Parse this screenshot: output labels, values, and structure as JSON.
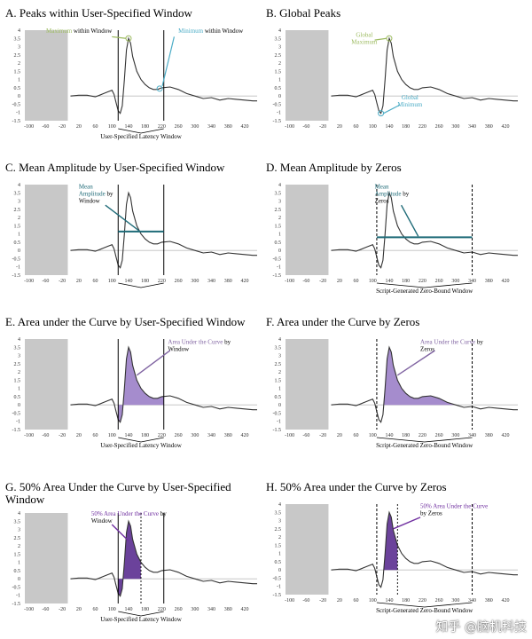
{
  "figure": {
    "panels": [
      {
        "id": "A",
        "title": "A. Peaks within User-Specified Window",
        "window_type": "user",
        "window_label": "User-Specified Latency Window",
        "annotations": [
          {
            "parts": [
              {
                "t": "Maximum",
                "c": "#9dbb61"
              },
              {
                "t": " within Window",
                "c": "#000"
              }
            ]
          },
          {
            "parts": [
              {
                "t": "Minimum",
                "c": "#4bacc6"
              },
              {
                "t": " within Window",
                "c": "#000"
              }
            ]
          }
        ]
      },
      {
        "id": "B",
        "title": "B. Global Peaks",
        "window_type": "none",
        "window_label": "",
        "annotations": [
          {
            "parts": [
              {
                "t": "Global",
                "c": "#9dbb61"
              }
            ],
            "line2": [
              {
                "t": "Maximum",
                "c": "#9dbb61"
              }
            ]
          },
          {
            "parts": [
              {
                "t": "Global",
                "c": "#4bacc6"
              }
            ],
            "line2": [
              {
                "t": "Minimum",
                "c": "#4bacc6"
              }
            ]
          }
        ]
      },
      {
        "id": "C",
        "title": "C. Mean Amplitude by User-Specified Window",
        "window_type": "user",
        "window_label": "",
        "annotations": [
          {
            "lines": [
              [
                {
                  "t": "Mean",
                  "c": "#1f6b78"
                }
              ],
              [
                {
                  "t": "Amplitude",
                  "c": "#1f6b78"
                },
                {
                  "t": " by",
                  "c": "#000"
                }
              ],
              [
                {
                  "t": "Window",
                  "c": "#000"
                }
              ]
            ]
          }
        ],
        "mean_level": 1.15
      },
      {
        "id": "D",
        "title": "D. Mean Amplitude by Zeros",
        "window_type": "zero",
        "window_label": "Script-Generated Zero-Bound Window",
        "annotations": [
          {
            "lines": [
              [
                {
                  "t": "Mean",
                  "c": "#1f6b78"
                }
              ],
              [
                {
                  "t": "Amplitude",
                  "c": "#1f6b78"
                },
                {
                  "t": " by",
                  "c": "#000"
                }
              ],
              [
                {
                  "t": "Zeros",
                  "c": "#000"
                }
              ]
            ]
          }
        ],
        "mean_level": 0.8
      },
      {
        "id": "E",
        "title": "E. Area under the Curve by User-Specified Window",
        "window_type": "user",
        "window_label": "User-Specified Latency Window",
        "annotations": [
          {
            "lines": [
              [
                {
                  "t": "Area Under the Curve",
                  "c": "#8064a2"
                },
                {
                  "t": " by",
                  "c": "#000"
                }
              ],
              [
                {
                  "t": "Window",
                  "c": "#000"
                }
              ]
            ]
          }
        ]
      },
      {
        "id": "F",
        "title": "F. Area under the Curve by Zeros",
        "window_type": "zero",
        "window_label": "Script-Generated Zero-Bound Window",
        "annotations": [
          {
            "lines": [
              [
                {
                  "t": "Area Under the Curve",
                  "c": "#8064a2"
                },
                {
                  "t": " by",
                  "c": "#000"
                }
              ],
              [
                {
                  "t": "Zeros",
                  "c": "#000"
                }
              ]
            ]
          }
        ]
      },
      {
        "id": "G",
        "title": "G. 50% Area Under the Curve by User-Specified Window",
        "window_type": "user",
        "window_label": "User-Specified Latency Window",
        "annotations": [
          {
            "lines": [
              [
                {
                  "t": "50% Area Under the Curve",
                  "c": "#7030a0"
                },
                {
                  "t": " by",
                  "c": "#000"
                }
              ],
              [
                {
                  "t": "Window",
                  "c": "#000"
                }
              ]
            ]
          }
        ]
      },
      {
        "id": "H",
        "title": "H. 50% Area under the Curve by Zeros",
        "window_type": "zero",
        "window_label": "Script-Generated Zero-Bound Window",
        "annotations": [
          {
            "lines": [
              [
                {
                  "t": "50% Area Under the Curve",
                  "c": "#7030a0"
                }
              ],
              [
                {
                  "t": "by Zeros",
                  "c": "#000"
                }
              ]
            ]
          }
        ]
      }
    ],
    "watermark": "知乎 @脑机科技"
  },
  "chart_data": {
    "type": "line",
    "x_ticks": [
      -100,
      -60,
      -20,
      20,
      60,
      100,
      140,
      180,
      220,
      260,
      300,
      340,
      380,
      420
    ],
    "y_ticks": [
      4,
      3.5,
      3,
      2.5,
      2,
      1.5,
      1,
      0.5,
      0,
      -0.5,
      -1,
      -1.5
    ],
    "xlim": [
      -110,
      450
    ],
    "ylim": [
      -1.5,
      4
    ],
    "baseline_region": [
      -110,
      0
    ],
    "user_window": [
      115,
      225
    ],
    "zero_window": [
      110,
      340
    ],
    "waveform": {
      "x": [
        0,
        20,
        40,
        60,
        70,
        80,
        90,
        100,
        105,
        110,
        115,
        120,
        125,
        130,
        135,
        140,
        145,
        150,
        160,
        170,
        180,
        190,
        200,
        210,
        220,
        240,
        260,
        280,
        300,
        320,
        340,
        360,
        380,
        400,
        420,
        440,
        450
      ],
      "y": [
        0,
        0.05,
        0.05,
        -0.05,
        0.05,
        0.15,
        0.25,
        0.35,
        0.1,
        -0.4,
        -0.9,
        -1.05,
        -0.6,
        1.0,
        2.8,
        3.5,
        3.2,
        2.4,
        1.5,
        1.0,
        0.7,
        0.5,
        0.4,
        0.4,
        0.5,
        0.55,
        0.4,
        0.15,
        0.0,
        -0.15,
        -0.1,
        -0.25,
        -0.15,
        -0.2,
        -0.25,
        -0.3,
        -0.3
      ]
    },
    "peaks": {
      "window_maximum": [
        140,
        3.5
      ],
      "window_minimum": [
        215,
        0.45
      ],
      "global_maximum": [
        140,
        3.5
      ],
      "global_minimum": [
        120,
        -1.05
      ]
    },
    "fifty_percent_latency": {
      "user": 170,
      "zero": 160
    }
  }
}
